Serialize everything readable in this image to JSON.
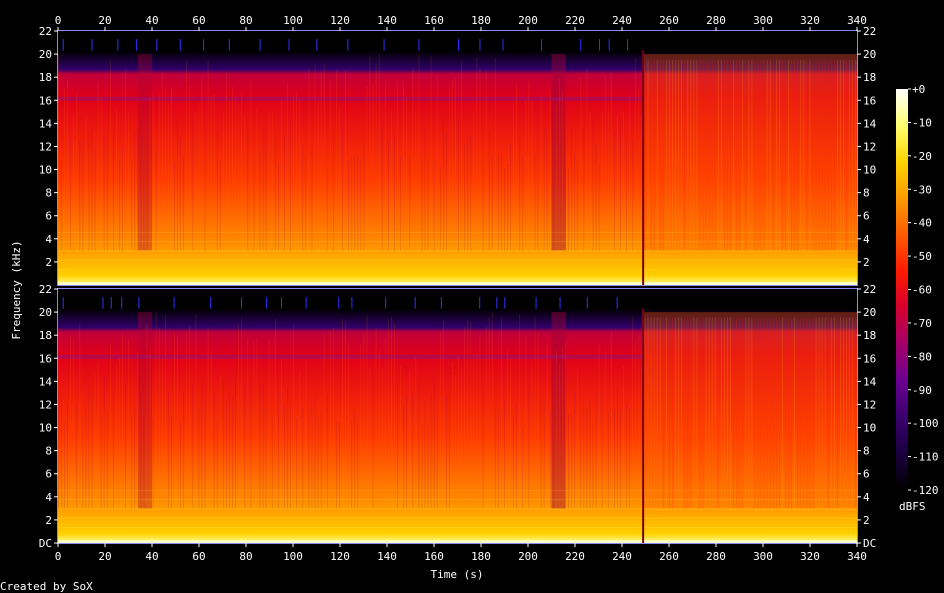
{
  "chart_data": {
    "type": "heatmap",
    "title": "",
    "xlabel": "Time (s)",
    "ylabel": "Frequency (kHz)",
    "xlim": [
      0,
      340
    ],
    "ylim": [
      0,
      22
    ],
    "x_ticks": [
      "0",
      "20",
      "40",
      "60",
      "80",
      "100",
      "120",
      "140",
      "160",
      "180",
      "200",
      "220",
      "240",
      "260",
      "280",
      "300",
      "320",
      "340"
    ],
    "y_ticks_top": [
      "2",
      "4",
      "6",
      "8",
      "10",
      "12",
      "14",
      "16",
      "18",
      "20",
      "22"
    ],
    "y_ticks_bottom": [
      "DC",
      "2",
      "4",
      "6",
      "8",
      "10",
      "12",
      "14",
      "16",
      "18",
      "20",
      "22"
    ],
    "channels": 2,
    "colorbar": {
      "label": "dBFS",
      "ticks": [
        "+0",
        "-10",
        "-20",
        "-30",
        "-40",
        "-50",
        "-60",
        "-70",
        "-80",
        "-90",
        "-100",
        "-110",
        "-120"
      ],
      "range": [
        -120,
        0
      ],
      "colors": [
        "#000000",
        "#1a0040",
        "#3a006e",
        "#6a0090",
        "#a3006a",
        "#d6002e",
        "#ff1a00",
        "#ff5a00",
        "#ff9a00",
        "#ffd400",
        "#ffff70",
        "#ffffff"
      ]
    },
    "energy_segments": [
      {
        "t": [
          0,
          34
        ],
        "level": "moderate",
        "bandlimit_khz": 20
      },
      {
        "t": [
          34,
          40
        ],
        "level": "low",
        "bandlimit_khz": 20
      },
      {
        "t": [
          40,
          210
        ],
        "level": "moderate",
        "bandlimit_khz": 20
      },
      {
        "t": [
          210,
          216
        ],
        "level": "dip",
        "bandlimit_khz": 20
      },
      {
        "t": [
          216,
          249
        ],
        "level": "moderate",
        "bandlimit_khz": 20
      },
      {
        "t": [
          249,
          340
        ],
        "level": "high",
        "bandlimit_khz": 20
      }
    ]
  },
  "footer": {
    "credit": "Created by SoX"
  }
}
